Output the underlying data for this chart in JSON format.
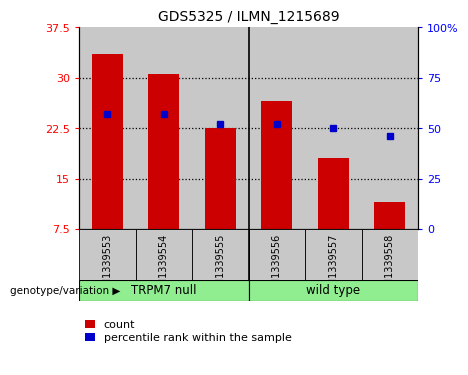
{
  "title": "GDS5325 / ILMN_1215689",
  "samples": [
    "GSM1339553",
    "GSM1339554",
    "GSM1339555",
    "GSM1339556",
    "GSM1339557",
    "GSM1339558"
  ],
  "counts": [
    33.5,
    30.5,
    22.5,
    26.5,
    18.0,
    11.5
  ],
  "percentile_ranks": [
    57,
    57,
    52,
    52,
    50,
    46
  ],
  "groups": [
    {
      "label": "TRPM7 null",
      "span": [
        0,
        2
      ],
      "color": "#90EE90"
    },
    {
      "label": "wild type",
      "span": [
        3,
        5
      ],
      "color": "#90EE90"
    }
  ],
  "y_min": 7.5,
  "y_max": 37.5,
  "y_ticks_left": [
    7.5,
    15.0,
    22.5,
    30.0,
    37.5
  ],
  "y_ticks_right": [
    0,
    25,
    50,
    75,
    100
  ],
  "bar_color": "#CC0000",
  "dot_color": "#0000CC",
  "separator_after_idx": 2,
  "group_label_prefix": "genotype/variation",
  "legend_count_label": "count",
  "legend_percentile_label": "percentile rank within the sample",
  "bar_width": 0.55,
  "bg_color": "#C8C8C8",
  "grid_color": "black",
  "grid_levels": [
    15.0,
    22.5,
    30.0
  ]
}
